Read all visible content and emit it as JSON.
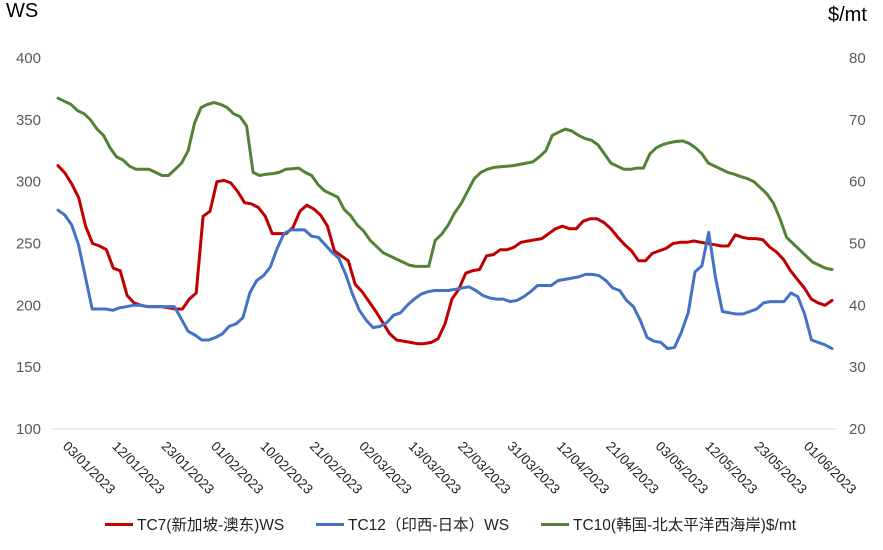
{
  "chart_data": {
    "type": "line",
    "left_unit": "WS",
    "right_unit": "$/mt",
    "left_ylim": [
      100,
      400
    ],
    "left_ticks": [
      "400",
      "350",
      "300",
      "250",
      "200",
      "150",
      "100"
    ],
    "right_ylim": [
      20,
      80
    ],
    "right_ticks": [
      "80",
      "70",
      "60",
      "50",
      "40",
      "30",
      "20"
    ],
    "x_tick_labels": [
      "03/01/2023",
      "12/01/2023",
      "23/01/2023",
      "01/02/2023",
      "10/02/2023",
      "21/02/2023",
      "02/03/2023",
      "13/03/2023",
      "22/03/2023",
      "31/03/2023",
      "12/04/2023",
      "21/04/2023",
      "03/05/2023",
      "12/05/2023",
      "23/05/2023",
      "01/06/2023"
    ],
    "grid": false,
    "legend_position": "bottom",
    "colors": {
      "tc7": "#c00000",
      "tc12": "#4472c4",
      "tc10": "#548235"
    },
    "series": [
      {
        "name": "TC7(新加坡-澳东)WS",
        "axis": "left",
        "values": [
          313,
          307,
          298,
          287,
          264,
          250,
          248,
          245,
          230,
          228,
          208,
          202,
          200,
          199,
          199,
          199,
          198,
          197,
          197,
          205,
          210,
          272,
          276,
          300,
          301,
          299,
          292,
          283,
          282,
          279,
          272,
          258,
          258,
          258,
          263,
          276,
          281,
          278,
          273,
          264,
          244,
          240,
          236,
          217,
          211,
          203,
          195,
          186,
          177,
          172,
          171,
          170,
          169,
          169,
          170,
          173,
          185,
          205,
          213,
          226,
          228,
          229,
          240,
          241,
          245,
          245,
          247,
          251,
          252,
          253,
          254,
          258,
          262,
          264,
          262,
          262,
          268,
          270,
          270,
          267,
          262,
          255,
          249,
          244,
          236,
          236,
          242,
          244,
          246,
          250,
          251,
          251,
          252,
          251,
          250,
          249,
          248,
          248,
          257,
          255,
          254,
          254,
          253,
          247,
          243,
          237,
          228,
          221,
          214,
          205,
          202,
          200,
          204
        ]
      },
      {
        "name": "TC12（印西-日本）WS",
        "axis": "left",
        "values": [
          277,
          273,
          265,
          249,
          223,
          197,
          197,
          197,
          196,
          198,
          199,
          200,
          200,
          199,
          199,
          199,
          199,
          199,
          189,
          179,
          176,
          172,
          172,
          174,
          177,
          183,
          185,
          190,
          210,
          220,
          224,
          231,
          246,
          258,
          261,
          261,
          261,
          256,
          255,
          249,
          243,
          238,
          225,
          209,
          196,
          188,
          182,
          183,
          186,
          192,
          194,
          200,
          205,
          209,
          211,
          212,
          212,
          212,
          213,
          214,
          215,
          212,
          208,
          206,
          205,
          205,
          203,
          204,
          207,
          211,
          216,
          216,
          216,
          220,
          221,
          222,
          223,
          225,
          225,
          224,
          220,
          214,
          212,
          204,
          199,
          188,
          174,
          171,
          170,
          165,
          166,
          178,
          194,
          227,
          232,
          259,
          222,
          195,
          194,
          193,
          193,
          195,
          197,
          202,
          203,
          203,
          203,
          210,
          207,
          193,
          172,
          170,
          168,
          165
        ]
      },
      {
        "name": "TC10(韩国-北太平洋西海岸)$/mt",
        "axis": "right",
        "values": [
          73.5,
          73,
          72.5,
          71.5,
          71,
          70,
          68.5,
          67.5,
          65.5,
          64,
          63.5,
          62.5,
          62,
          62,
          62,
          61.5,
          61,
          61,
          62,
          63,
          65,
          69.5,
          72,
          72.5,
          72.8,
          72.5,
          72,
          71,
          70.5,
          69,
          61.5,
          61,
          61.2,
          61.3,
          61.5,
          62,
          62.1,
          62.2,
          61.5,
          61,
          59.5,
          58.5,
          58,
          57.5,
          55.5,
          54.5,
          53,
          52,
          50.5,
          49.5,
          48.5,
          48,
          47.5,
          47,
          46.5,
          46.3,
          46.3,
          46.3,
          50.5,
          51.5,
          53,
          55,
          56.5,
          58.5,
          60.5,
          61.5,
          62,
          62.3,
          62.4,
          62.5,
          62.6,
          62.8,
          63,
          63.2,
          64,
          65,
          67.5,
          68,
          68.5,
          68.2,
          67.5,
          67,
          66.7,
          66,
          64.5,
          63,
          62.5,
          62,
          62,
          62.2,
          62.2,
          64.5,
          65.5,
          66,
          66.3,
          66.5,
          66.6,
          66.2,
          65.5,
          64.5,
          63,
          62.5,
          62,
          61.5,
          61.2,
          60.8,
          60.5,
          60,
          59,
          58,
          56.5,
          54,
          51,
          50,
          49,
          48,
          47,
          46.5,
          46,
          45.8
        ]
      }
    ]
  }
}
